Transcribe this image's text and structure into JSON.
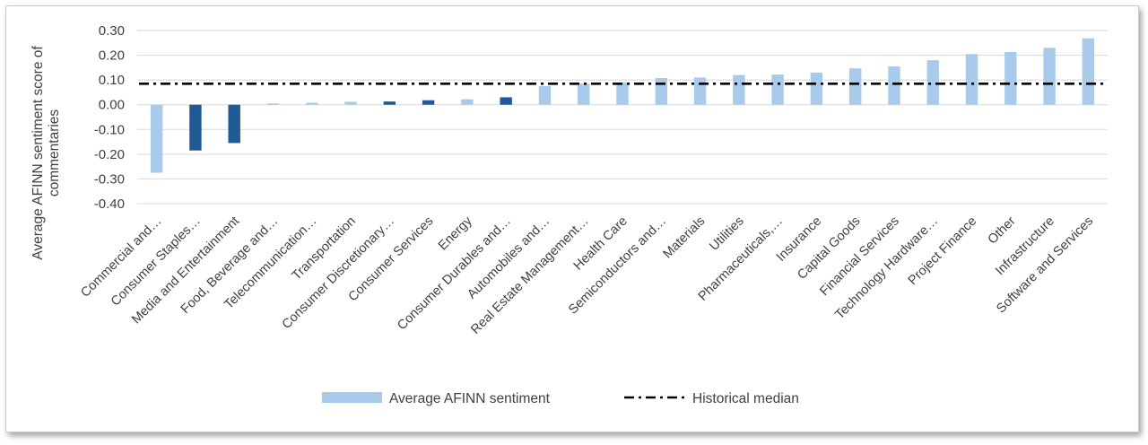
{
  "chart_data": {
    "type": "bar",
    "ylabel": "Average AFINN sentiment score of commentaries",
    "ylabel_lines": [
      "Average AFINN sentiment score of",
      "commentaries"
    ],
    "ylim": [
      -0.4,
      0.3
    ],
    "yticks": [
      0.3,
      0.2,
      0.1,
      0.0,
      -0.1,
      -0.2,
      -0.3,
      -0.4
    ],
    "ytick_labels": [
      "0.30",
      "0.20",
      "0.10",
      "0.00",
      "-0.10",
      "-0.20",
      "-0.30",
      "-0.40"
    ],
    "grid": true,
    "legend_position": "bottom",
    "categories": [
      "Commercial and…",
      "Consumer Staples…",
      "Media and Entertainment",
      "Food, Beverage and…",
      "Telecommunication…",
      "Transportation",
      "Consumer Discretionary…",
      "Consumer Services",
      "Energy",
      "Consumer Durables and…",
      "Automobiles and…",
      "Real Estate Management…",
      "Health Care",
      "Semiconductors and…",
      "Materials",
      "Utilities",
      "Pharmaceuticals,…",
      "Insurance",
      "Capital Goods",
      "Financial Services",
      "Technology Hardware…",
      "Project Finance",
      "Other",
      "Infrastructure",
      "Software and Services"
    ],
    "series": [
      {
        "name": "Average AFINN sentiment",
        "color": "#a9cbeb",
        "values": [
          -0.275,
          -0.185,
          -0.155,
          0.005,
          0.008,
          0.012,
          0.013,
          0.018,
          0.022,
          0.03,
          0.075,
          0.085,
          0.09,
          0.108,
          0.11,
          0.12,
          0.122,
          0.13,
          0.147,
          0.155,
          0.18,
          0.205,
          0.213,
          0.23,
          0.268
        ]
      },
      {
        "name": "Historical median",
        "style": "dash-dot",
        "color": "#000000",
        "value": 0.085
      }
    ],
    "highlight_color": "#1f5a94",
    "highlighted_categories": [
      "Consumer Staples…",
      "Media and Entertainment",
      "Consumer Discretionary…",
      "Consumer Services",
      "Consumer Durables and…"
    ]
  }
}
